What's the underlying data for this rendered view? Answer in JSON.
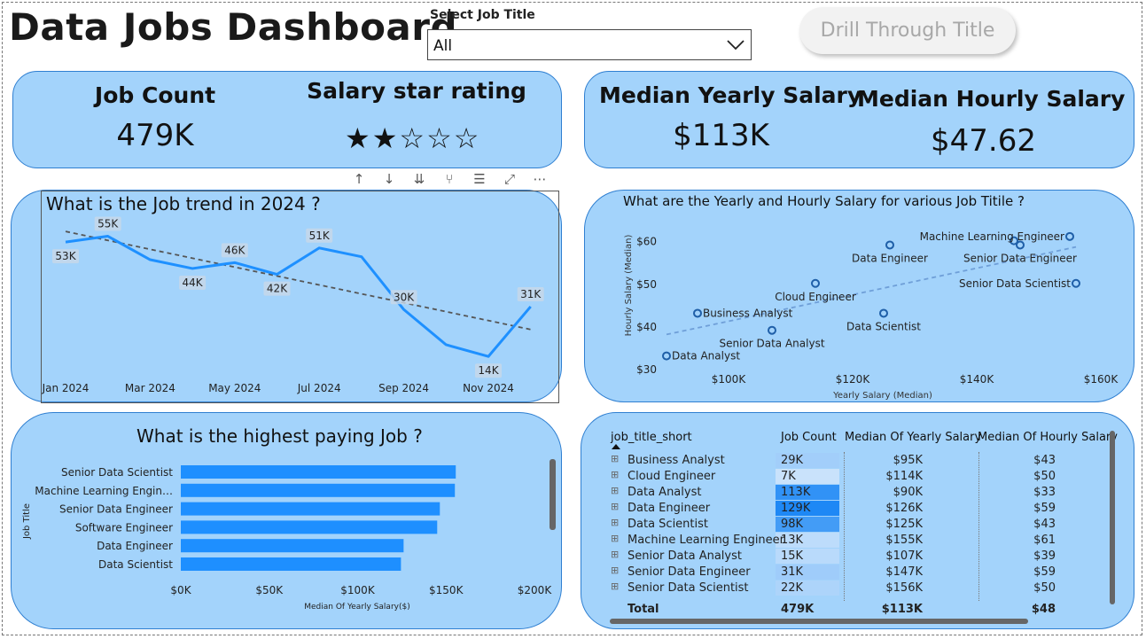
{
  "header": {
    "title": "Data Jobs Dashboard",
    "filter_label": "Select Job Title",
    "filter_value": "All",
    "drill_button": "Drill Through Title"
  },
  "kpis": {
    "job_count_label": "Job Count",
    "job_count_value": "479K",
    "rating_label": "Salary star rating",
    "rating_stars": "★★☆☆☆",
    "rating_value": 2,
    "rating_max": 5,
    "median_yearly_label": "Median Yearly Salary",
    "median_yearly_value": "$113K",
    "median_hourly_label": "Median Hourly Salary",
    "median_hourly_value": "$47.62"
  },
  "visual_toolbar": [
    "↑",
    "↓",
    "⇊",
    "⑂",
    "☰",
    "⤢",
    "⋯"
  ],
  "chart_data": [
    {
      "type": "line",
      "title": "What is the Job trend in 2024 ?",
      "x": [
        "Jan 2024",
        "Feb 2024",
        "Mar 2024",
        "Apr 2024",
        "May 2024",
        "Jun 2024",
        "Jul 2024",
        "Aug 2024",
        "Sep 2024",
        "Oct 2024",
        "Nov 2024",
        "Dec 2024"
      ],
      "tick_labels": [
        "Jan 2024",
        "Mar 2024",
        "May 2024",
        "Jul 2024",
        "Sep 2024",
        "Nov 2024"
      ],
      "values": [
        53,
        55,
        47,
        44,
        46,
        42,
        51,
        48,
        30,
        18,
        14,
        31
      ],
      "data_labels": [
        {
          "index": 0,
          "text": "53K"
        },
        {
          "index": 1,
          "text": "55K"
        },
        {
          "index": 3,
          "text": "44K"
        },
        {
          "index": 4,
          "text": "46K"
        },
        {
          "index": 5,
          "text": "42K"
        },
        {
          "index": 6,
          "text": "51K"
        },
        {
          "index": 8,
          "text": "30K"
        },
        {
          "index": 10,
          "text": "14K"
        },
        {
          "index": 11,
          "text": "31K"
        }
      ],
      "trendline": true,
      "ylim": [
        5,
        60
      ],
      "color": "#1e90ff"
    },
    {
      "type": "scatter",
      "title": "What are the Yearly and Hourly Salary for various Job Titile ?",
      "xlabel": "Yearly Salary (Median)",
      "ylabel": "Hourly Salary (Median)",
      "xlim": [
        90000,
        160000
      ],
      "ylim": [
        30,
        62
      ],
      "x_ticks": [
        {
          "v": 100000,
          "t": "$100K"
        },
        {
          "v": 120000,
          "t": "$120K"
        },
        {
          "v": 140000,
          "t": "$140K"
        },
        {
          "v": 160000,
          "t": "$160K"
        }
      ],
      "y_ticks": [
        {
          "v": 30,
          "t": "$30"
        },
        {
          "v": 40,
          "t": "$40"
        },
        {
          "v": 50,
          "t": "$50"
        },
        {
          "v": 60,
          "t": "$60"
        }
      ],
      "points": [
        {
          "label": "Business Analyst",
          "x": 95000,
          "y": 43,
          "anchor": "start"
        },
        {
          "label": "Cloud Engineer",
          "x": 114000,
          "y": 50,
          "anchor": "middle-below"
        },
        {
          "label": "Data Analyst",
          "x": 90000,
          "y": 33,
          "anchor": "start"
        },
        {
          "label": "Data Engineer",
          "x": 126000,
          "y": 59,
          "anchor": "middle-below"
        },
        {
          "label": "Data Scientist",
          "x": 125000,
          "y": 43,
          "anchor": "middle-below"
        },
        {
          "label": "Machine Learning Engineer",
          "x": 155000,
          "y": 61,
          "anchor": "end"
        },
        {
          "label": "Senior Data Analyst",
          "x": 107000,
          "y": 39,
          "anchor": "middle-below"
        },
        {
          "label": "Senior Data Engineer",
          "x": 147000,
          "y": 59,
          "anchor": "middle-below"
        },
        {
          "label": "Senior Data Scientist",
          "x": 156000,
          "y": 50,
          "anchor": "end"
        }
      ],
      "extra_point": {
        "x": 146000,
        "y": 60
      },
      "trendline": true,
      "color": "#1f5fa8"
    },
    {
      "type": "bar",
      "orientation": "horizontal",
      "title": "What is the highest paying Job ?",
      "xlabel": "Median Of Yearly Salary($)",
      "ylabel": "Job Title",
      "categories": [
        "Senior Data Scientist",
        "Machine Learning Engin…",
        "Senior Data Engineer",
        "Software Engineer",
        "Data Engineer",
        "Data Scientist"
      ],
      "values": [
        155500,
        155000,
        146500,
        145000,
        126000,
        124500
      ],
      "xlim": [
        0,
        200000
      ],
      "x_ticks": [
        {
          "v": 0,
          "t": "$0K"
        },
        {
          "v": 50000,
          "t": "$50K"
        },
        {
          "v": 100000,
          "t": "$100K"
        },
        {
          "v": 150000,
          "t": "$150K"
        },
        {
          "v": 200000,
          "t": "$200K"
        }
      ],
      "color": "#1e8fff"
    },
    {
      "type": "table",
      "columns": [
        "job_title_short",
        "Job Count",
        "Median Of Yearly Salary",
        "Median Of Hourly Salary"
      ],
      "rows": [
        {
          "title": "Business Analyst",
          "count": "29K",
          "count_num": 29,
          "yearly": "$95K",
          "hourly": "$43"
        },
        {
          "title": "Cloud Engineer",
          "count": "7K",
          "count_num": 7,
          "yearly": "$114K",
          "hourly": "$50"
        },
        {
          "title": "Data Analyst",
          "count": "113K",
          "count_num": 113,
          "yearly": "$90K",
          "hourly": "$33"
        },
        {
          "title": "Data Engineer",
          "count": "129K",
          "count_num": 129,
          "yearly": "$126K",
          "hourly": "$59"
        },
        {
          "title": "Data Scientist",
          "count": "98K",
          "count_num": 98,
          "yearly": "$125K",
          "hourly": "$43"
        },
        {
          "title": "Machine Learning Engineer",
          "count": "13K",
          "count_num": 13,
          "yearly": "$155K",
          "hourly": "$61"
        },
        {
          "title": "Senior Data Analyst",
          "count": "15K",
          "count_num": 15,
          "yearly": "$107K",
          "hourly": "$39"
        },
        {
          "title": "Senior Data Engineer",
          "count": "31K",
          "count_num": 31,
          "yearly": "$147K",
          "hourly": "$59"
        },
        {
          "title": "Senior Data Scientist",
          "count": "22K",
          "count_num": 22,
          "yearly": "$156K",
          "hourly": "$50"
        }
      ],
      "total": {
        "title": "Total",
        "count": "479K",
        "yearly": "$113K",
        "hourly": "$48"
      }
    }
  ]
}
